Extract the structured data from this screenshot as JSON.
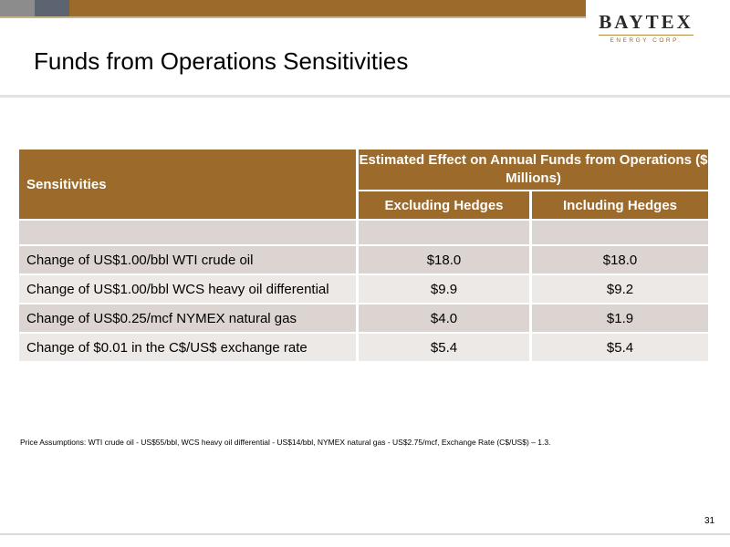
{
  "header": {
    "logo": {
      "name": "BAYTEX",
      "sub": "ENERGY CORP."
    },
    "title": "Funds from Operations Sensitivities"
  },
  "table": {
    "col_label": "Sensitivities",
    "group_header": "Estimated Effect on Annual Funds from Operations ($ Millions)",
    "sub_headers": [
      "Excluding Hedges",
      "Including Hedges"
    ],
    "rows": [
      {
        "label": "Change of US$1.00/bbl WTI crude oil",
        "excluding": "$18.0",
        "including": "$18.0"
      },
      {
        "label": "Change of US$1.00/bbl WCS heavy oil differential",
        "excluding": "$9.9",
        "including": "$9.2"
      },
      {
        "label": "Change of US$0.25/mcf NYMEX natural gas",
        "excluding": "$4.0",
        "including": "$1.9"
      },
      {
        "label": "Change of $0.01 in the C$/US$ exchange rate",
        "excluding": "$5.4",
        "including": "$5.4"
      }
    ]
  },
  "footnote": "Price Assumptions:  WTI crude oil - US$55/bbl, WCS heavy oil differential - US$14/bbl, NYMEX natural gas - US$2.75/mcf, Exchange Rate (C$/US$) – 1.3.",
  "page_number": "31",
  "colors": {
    "brand_brown": "#9c6a2a",
    "row_dark": "#dcd4d0",
    "row_light": "#ede9e6"
  }
}
